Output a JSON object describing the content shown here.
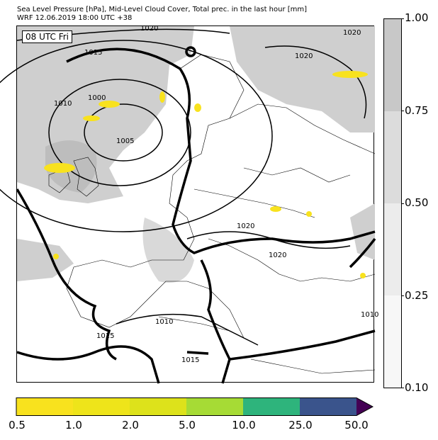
{
  "title": {
    "line1": "Sea Level Pressure [hPa], Mid-Level Cloud Cover, Total prec. in the last hour [mm]",
    "line2": "WRF 12.06.2019 18:00 UTC +38"
  },
  "map": {
    "valid_time_label": "08 UTC Fri",
    "isobar_labels": [
      "1020",
      "1020",
      "1020",
      "1015",
      "1010",
      "1000",
      "1005",
      "1020",
      "1020",
      "1010",
      "1015",
      "1015",
      "1010"
    ]
  },
  "cloud_colorbar": {
    "ticks": [
      "1.00",
      "0.75",
      "0.50",
      "0.25",
      "0.10"
    ],
    "colors": [
      "#c8c8c8",
      "#dcdcdc",
      "#ececec",
      "#f7f7f7"
    ]
  },
  "precip_colorbar": {
    "ticks": [
      "0.5",
      "1.0",
      "2.0",
      "5.0",
      "10.0",
      "25.0",
      "50.0"
    ],
    "colors": [
      "#f8e21e",
      "#eee41a",
      "#dde21b",
      "#a6db35",
      "#2eb47c",
      "#3a548c",
      "#440154"
    ]
  }
}
